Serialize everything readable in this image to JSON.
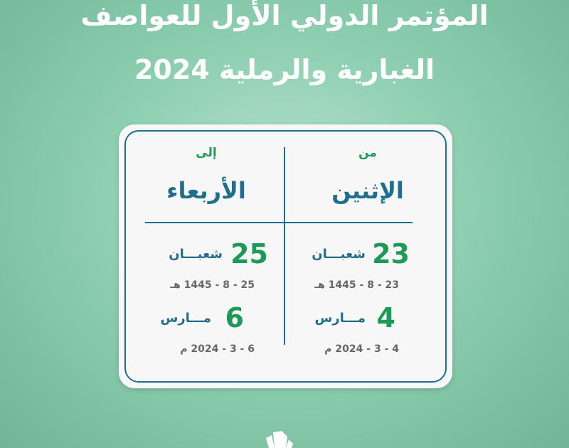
{
  "title": {
    "line1": "المؤتمر الدولي الأول للعواصف",
    "line2": "الغبارية والرملية 2024"
  },
  "card": {
    "from": {
      "label": "من",
      "day": "الإثنين",
      "hijri_day": "23",
      "hijri_month": "شعبـــان",
      "hijri_date": "23 - 8 - 1445 هـ",
      "greg_day": "4",
      "greg_month": "مـــارس",
      "greg_date": "4 - 3 - 2024 م"
    },
    "to": {
      "label": "إلى",
      "day": "الأربعاء",
      "hijri_day": "25",
      "hijri_month": "شعبـــان",
      "hijri_date": "25 - 8 - 1445 هـ",
      "greg_day": "6",
      "greg_month": "مـــارس",
      "greg_date": "6 - 3 - 2024 م"
    }
  },
  "colors": {
    "green": "#1e9a58",
    "blue": "#1f6e8c"
  }
}
